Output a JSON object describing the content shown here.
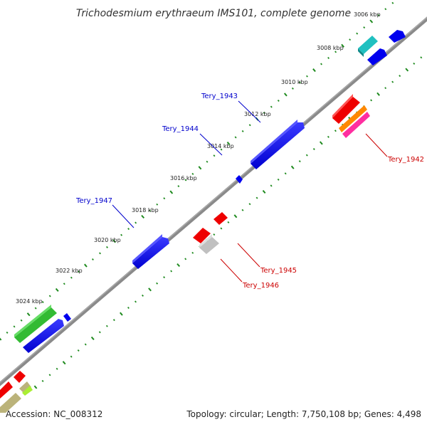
{
  "map": {
    "title": "Trichodesmium erythraeum IMS101, complete genome",
    "accession": "Accession: NC_008312",
    "summary": "Topology: circular; Length: 7,750,108 bp; Genes: 4,498"
  },
  "colors": {
    "backbone": "#888888",
    "tick": "#1e8a1e",
    "label_forward": "#0000cc",
    "label_reverse": "#cc0000"
  },
  "scale_ticks": [
    "3006 kbp",
    "3008 kbp",
    "3010 kbp",
    "3012 kbp",
    "3014 kbp",
    "3016 kbp",
    "3018 kbp",
    "3020 kbp",
    "3022 kbp",
    "3024 kbp"
  ],
  "gene_labels": [
    {
      "text": "Tery_1943",
      "strand": "forward"
    },
    {
      "text": "Tery_1944",
      "strand": "forward"
    },
    {
      "text": "Tery_1947",
      "strand": "forward"
    },
    {
      "text": "Tery_1942",
      "strand": "reverse"
    },
    {
      "text": "Tery_1945",
      "strand": "reverse"
    },
    {
      "text": "Tery_1946",
      "strand": "reverse"
    }
  ],
  "feature_colors": [
    "#0000ee",
    "#ee0000",
    "#20c0c0",
    "#ff8800",
    "#ff2ea0",
    "#c0c0c0",
    "#33bb33",
    "#aaee33",
    "#bbb37a"
  ]
}
